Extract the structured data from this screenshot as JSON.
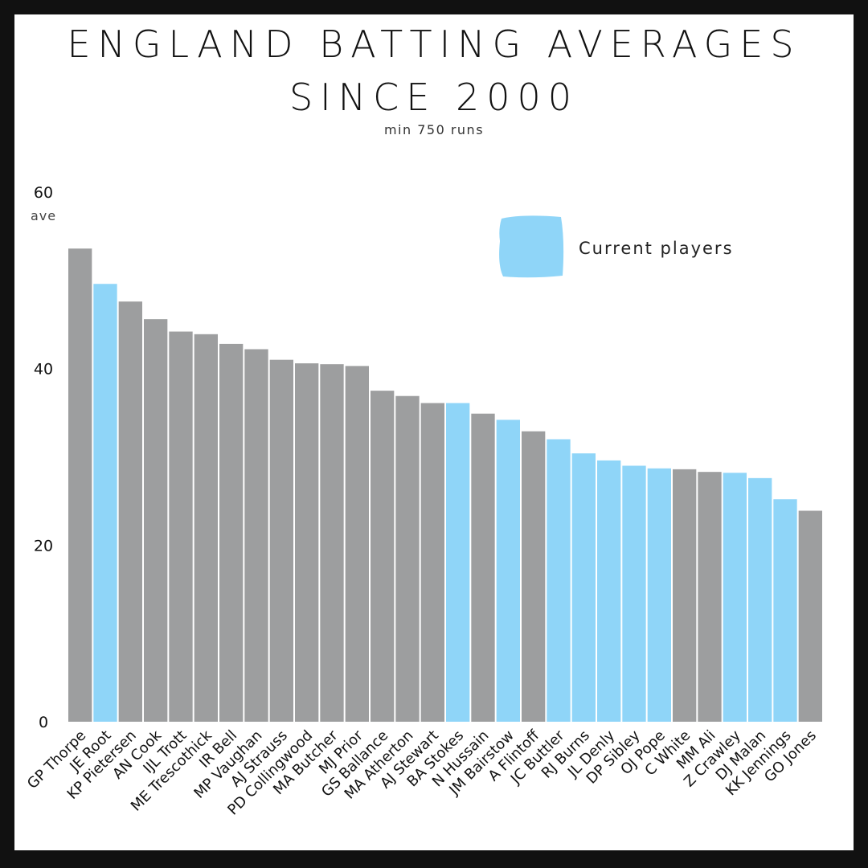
{
  "chart_data": {
    "type": "bar",
    "title_line1": "ENGLAND BATTING AVERAGES",
    "title_line2": "SINCE 2000",
    "subtitle": "min 750 runs",
    "ylabel": "ave",
    "ylim": [
      0,
      60
    ],
    "yticks": [
      0,
      20,
      40,
      60
    ],
    "grid": false,
    "legend": {
      "label": "Current players",
      "position": "top-right"
    },
    "colors": {
      "former": "#9d9e9f",
      "current": "#8fd5f8"
    },
    "categories": [
      "GP Thorpe",
      "JE Root",
      "KP Pietersen",
      "AN Cook",
      "IJL Trott",
      "ME Trescothick",
      "IR Bell",
      "MP Vaughan",
      "AJ Strauss",
      "PD Collingwood",
      "MA Butcher",
      "MJ Prior",
      "GS Ballance",
      "MA Atherton",
      "AJ Stewart",
      "BA Stokes",
      "N Hussain",
      "JM Bairstow",
      "A Flintoff",
      "JC Buttler",
      "RJ Burns",
      "JL Denly",
      "DP Sibley",
      "OJ Pope",
      "C White",
      "MM Ali",
      "Z Crawley",
      "DJ Malan",
      "KK Jennings",
      "GO Jones"
    ],
    "values": [
      53.6,
      49.6,
      47.6,
      45.6,
      44.2,
      43.9,
      42.8,
      42.2,
      41.0,
      40.6,
      40.5,
      40.3,
      37.5,
      36.9,
      36.1,
      36.1,
      34.9,
      34.2,
      32.9,
      32.0,
      30.4,
      29.6,
      29.0,
      28.7,
      28.6,
      28.3,
      28.2,
      27.6,
      25.2,
      23.9
    ],
    "current": [
      false,
      true,
      false,
      false,
      false,
      false,
      false,
      false,
      false,
      false,
      false,
      false,
      false,
      false,
      false,
      true,
      false,
      true,
      false,
      true,
      true,
      true,
      true,
      true,
      false,
      false,
      true,
      true,
      true,
      false
    ]
  }
}
